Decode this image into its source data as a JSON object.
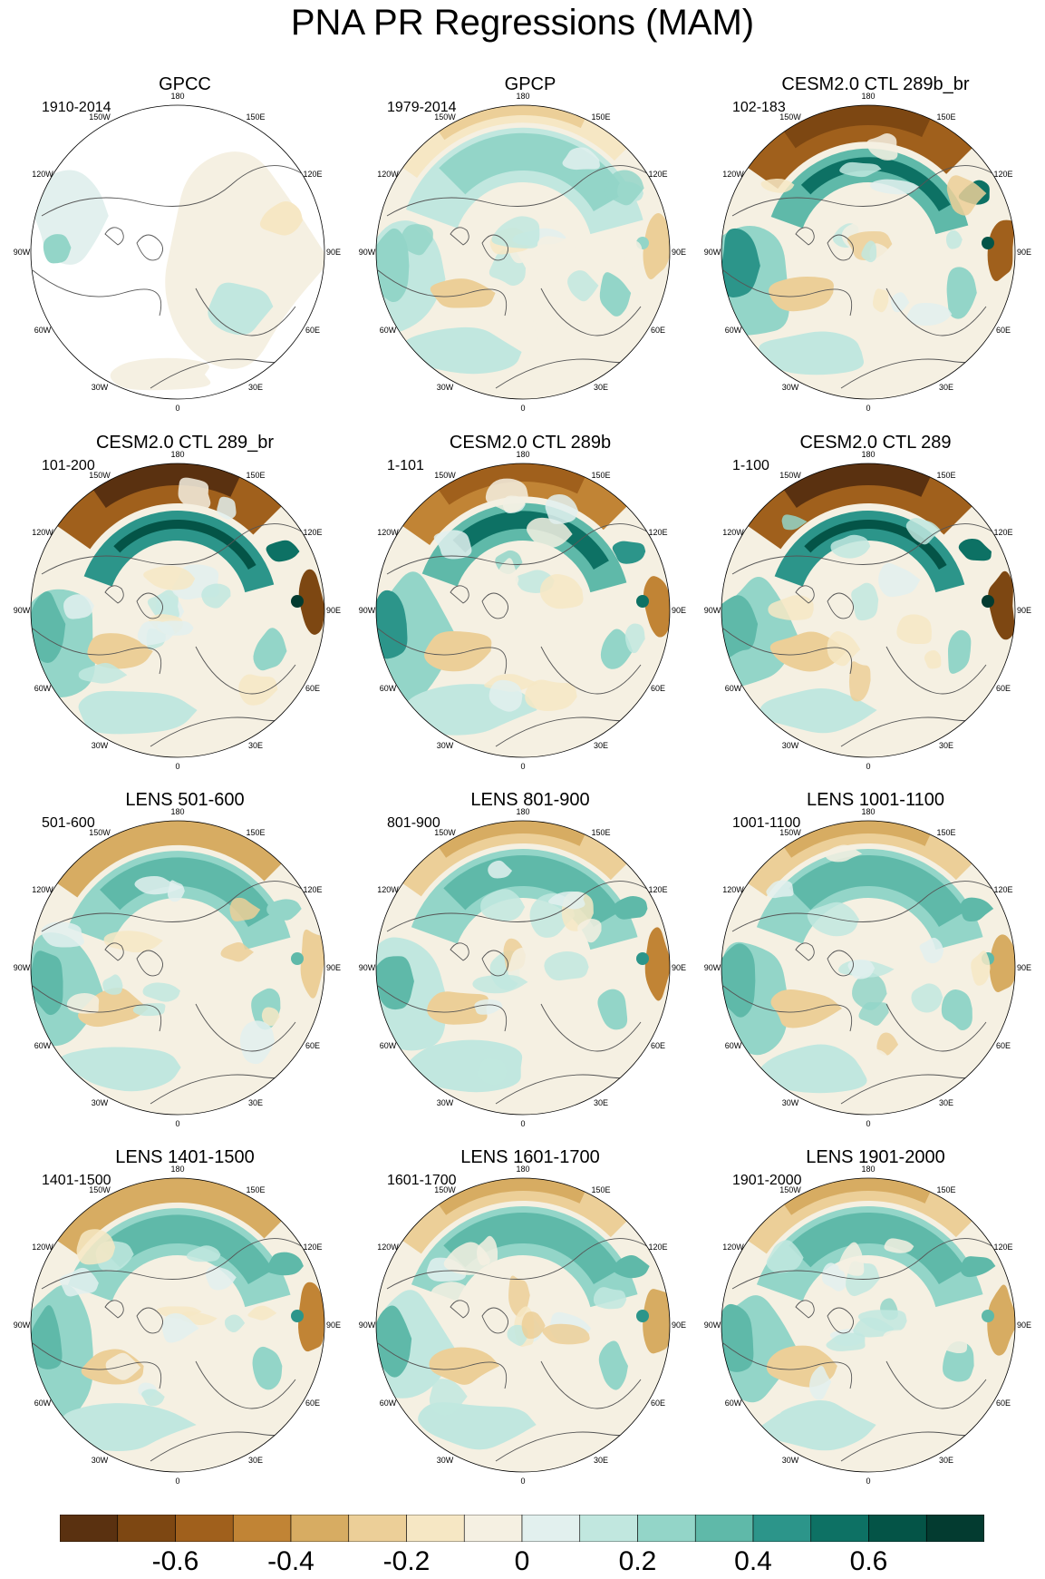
{
  "page_title": "PNA PR Regressions (MAM)",
  "chart_data": {
    "type": "heatmap",
    "title": "PNA PR Regressions (MAM)",
    "projection": "north polar stereographic",
    "longitude_labels": [
      "0",
      "30E",
      "60E",
      "90E",
      "120E",
      "150E",
      "180",
      "150W",
      "120W",
      "90W",
      "60W",
      "30W"
    ],
    "colorbar": {
      "colors": [
        "#5a3110",
        "#7d4712",
        "#a0601c",
        "#c18435",
        "#d7ac62",
        "#eccf98",
        "#f6e7c4",
        "#f5f0e2",
        "#e2f0ee",
        "#c1e7df",
        "#93d5c8",
        "#5fb9a9",
        "#2c958a",
        "#0d7164",
        "#045447",
        "#033b30"
      ],
      "tick_labels": [
        "-0.6",
        "-0.4",
        "-0.2",
        "0",
        "0.2",
        "0.4",
        "0.6"
      ]
    },
    "panels": [
      {
        "title": "GPCC",
        "period": "1910-2014"
      },
      {
        "title": "GPCP",
        "period": "1979-2014"
      },
      {
        "title": "CESM2.0 CTL 289b_br",
        "period": "102-183"
      },
      {
        "title": "CESM2.0 CTL 289_br",
        "period": "101-200"
      },
      {
        "title": "CESM2.0 CTL 289b",
        "period": "1-101"
      },
      {
        "title": "CESM2.0 CTL 289",
        "period": "1-100"
      },
      {
        "title": "LENS 501-600",
        "period": "501-600"
      },
      {
        "title": "LENS 801-900",
        "period": "801-900"
      },
      {
        "title": "LENS 1001-1100",
        "period": "1001-1100"
      },
      {
        "title": "LENS 1401-1500",
        "period": "1401-1500"
      },
      {
        "title": "LENS 1601-1700",
        "period": "1601-1700"
      },
      {
        "title": "LENS 1901-2000",
        "period": "1901-2000"
      }
    ]
  }
}
